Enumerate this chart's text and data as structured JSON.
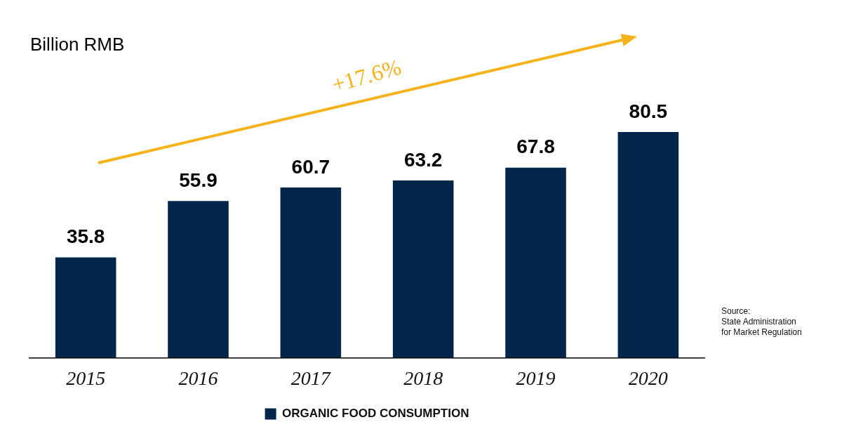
{
  "chart_data": {
    "type": "bar",
    "ylabel": "Billion RMB",
    "categories": [
      "2015",
      "2016",
      "2017",
      "2018",
      "2019",
      "2020"
    ],
    "series": [
      {
        "name": "ORGANIC FOOD CONSUMPTION",
        "color": "#03264a",
        "values": [
          35.8,
          55.9,
          60.7,
          63.2,
          67.8,
          80.5
        ]
      }
    ],
    "data_labels": true,
    "legend": "bottom",
    "grid": false,
    "annotations": [
      "+17.6%",
      "Source:\nState Administration\nfor Market Regulation"
    ]
  }
}
